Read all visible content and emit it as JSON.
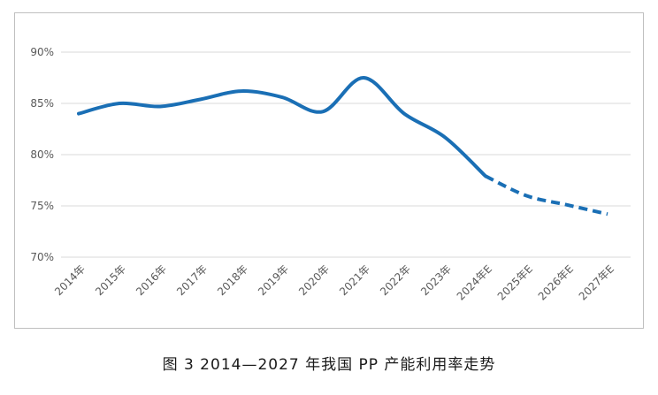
{
  "caption": "图 3  2014—2027 年我国 PP 产能利用率走势",
  "colors": {
    "series": "#1a6fb5",
    "grid": "#d9d9d9",
    "axis_text": "#595959",
    "frame": "#bfbfbf"
  },
  "chart_data": {
    "type": "line",
    "title": "",
    "xlabel": "",
    "ylabel": "",
    "categories": [
      "2014年",
      "2015年",
      "2016年",
      "2017年",
      "2018年",
      "2019年",
      "2020年",
      "2021年",
      "2022年",
      "2023年",
      "2024年E",
      "2025年E",
      "2026年E",
      "2027年E"
    ],
    "ylim": [
      70,
      90
    ],
    "yticks": [
      70,
      75,
      80,
      85,
      90
    ],
    "ytick_labels": [
      "70%",
      "75%",
      "80%",
      "85%",
      "90%"
    ],
    "grid": true,
    "series": [
      {
        "values": [
          84.0,
          85.0,
          84.7,
          85.4,
          86.2,
          85.6,
          84.2,
          87.5,
          84.0,
          81.7,
          77.9,
          76.0,
          75.1,
          74.2
        ],
        "actual_until_index": 10,
        "forecast_style": "dashed"
      }
    ]
  }
}
